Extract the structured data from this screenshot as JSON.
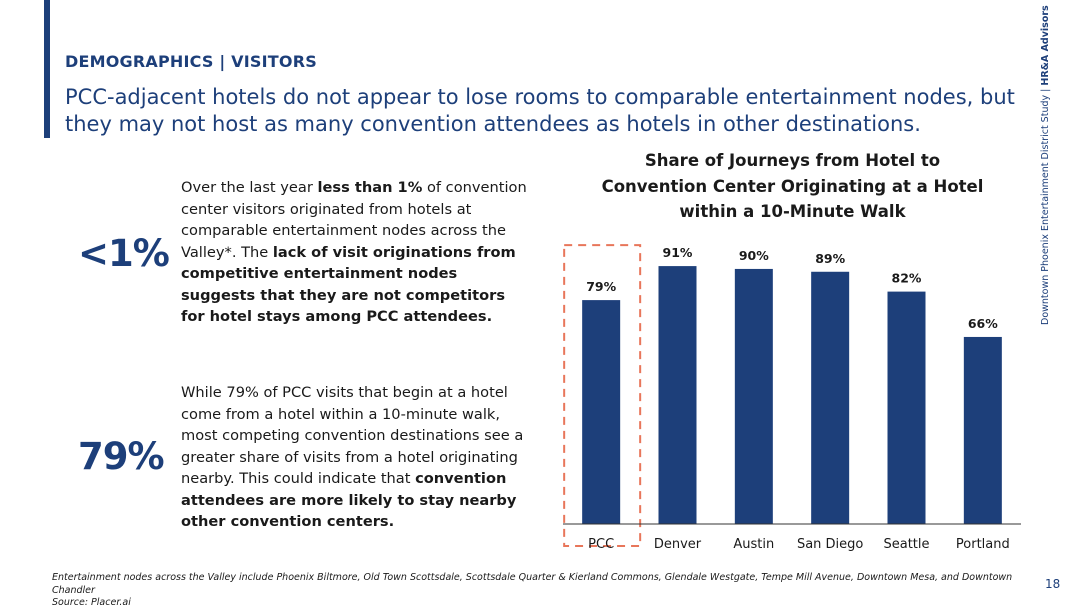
{
  "header": {
    "section_label": "DEMOGRAPHICS | VISITORS",
    "headline": "PCC-adjacent hotels do not appear to lose rooms to comparable entertainment nodes, but they may not host as many convention attendees as hotels in other destinations."
  },
  "stats": [
    {
      "value": "<1%",
      "text": [
        {
          "t": "Over the last year ",
          "b": false
        },
        {
          "t": "less than 1%",
          "b": true
        },
        {
          "t": " of convention center visitors originated from hotels at comparable entertainment nodes across the Valley*. The ",
          "b": false
        },
        {
          "t": "lack of visit originations from competitive entertainment nodes suggests that they are not competitors for hotel stays among PCC attendees.",
          "b": true
        }
      ]
    },
    {
      "value": "79%",
      "text": [
        {
          "t": "While 79% of PCC visits that begin at a hotel come from a hotel within a 10-minute walk, most competing convention destinations see a greater share of visits from a hotel originating nearby. This could indicate that ",
          "b": false
        },
        {
          "t": "convention attendees are more likely to stay nearby other convention centers.",
          "b": true
        }
      ]
    }
  ],
  "chart_data": {
    "type": "bar",
    "title": "Share of Journeys from Hotel to Convention Center Originating at a Hotel within a 10-Minute Walk",
    "categories": [
      "PCC",
      "Denver",
      "Austin",
      "San Diego",
      "Seattle",
      "Portland"
    ],
    "values": [
      79,
      91,
      90,
      89,
      82,
      66
    ],
    "value_labels": [
      "79%",
      "91%",
      "90%",
      "89%",
      "82%",
      "66%"
    ],
    "highlight_category": "PCC",
    "bar_color": "#1d3f7a",
    "highlight_color": "#e8765a",
    "xlabel": "",
    "ylabel": "",
    "grid": false,
    "legend": "none"
  },
  "side_credit": {
    "study": "Downtown Phoenix Entertainment District Study",
    "separator": " | ",
    "firm": "HR&A Advisors"
  },
  "footnote": {
    "line1": "Entertainment nodes across the Valley include Phoenix Biltmore, Old Town Scottsdale, Scottsdale Quarter & Kierland Commons, Glendale Westgate, Tempe Mill Avenue, Downtown Mesa, and Downtown Chandler",
    "line2": "Source: Placer.ai"
  },
  "page_number": "18",
  "colors": {
    "brand_navy": "#1d3f7a"
  }
}
